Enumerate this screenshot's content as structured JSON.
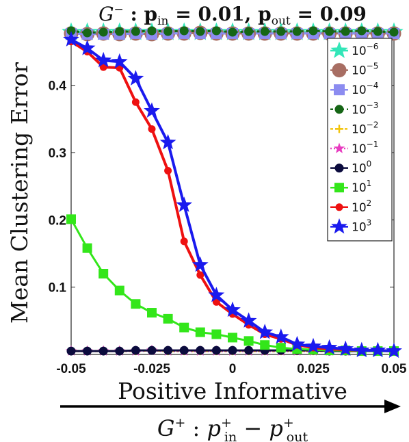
{
  "chart_data": {
    "type": "line",
    "title": "G⁻ : p_in = 0.01,  p_out = 0.09",
    "title_parts": {
      "g": "G",
      "g_sup": "−",
      "sep": " : ",
      "p": "p",
      "in": "in",
      "eq_in": " = 0.01,  ",
      "out": "out",
      "eq_out": " = 0.09"
    },
    "xlabel": "Positive Informative",
    "xlabel2_parts": {
      "g": "G",
      "sup": "+",
      "colon": " : ",
      "p": "p",
      "in": "in",
      "out": "out",
      "minus": " − "
    },
    "ylabel": "Mean Clustering Error",
    "xlim": [
      -0.05,
      0.05
    ],
    "ylim": [
      0.0,
      0.48
    ],
    "x_ticks": [
      -0.05,
      -0.025,
      0,
      0.025,
      0.05
    ],
    "x_tick_labels": [
      "-0.05",
      "-0.025",
      "0",
      "0.025",
      "0.05"
    ],
    "y_ticks": [
      0.1,
      0.2,
      0.3,
      0.4
    ],
    "y_tick_labels": [
      "0.1",
      "0.2",
      "0.3",
      "0.4"
    ],
    "legend_position": "top-right",
    "x": [
      -0.05,
      -0.045,
      -0.04,
      -0.035,
      -0.03,
      -0.025,
      -0.02,
      -0.015,
      -0.01,
      -0.005,
      0,
      0.005,
      0.01,
      0.015,
      0.02,
      0.025,
      0.03,
      0.035,
      0.04,
      0.045,
      0.05
    ],
    "series": [
      {
        "name": "10^-6",
        "base": "10",
        "exp": "-6",
        "color": "#33e6b8",
        "marker": "star",
        "size": 13,
        "dash": "",
        "values": [
          0.479,
          0.479,
          0.479,
          0.479,
          0.479,
          0.479,
          0.479,
          0.479,
          0.479,
          0.479,
          0.479,
          0.479,
          0.479,
          0.479,
          0.479,
          0.479,
          0.479,
          0.479,
          0.479,
          0.479,
          0.479
        ]
      },
      {
        "name": "10^-5",
        "base": "10",
        "exp": "-5",
        "color": "#a86e63",
        "marker": "circle",
        "size": 10,
        "dash": "",
        "values": [
          0.477,
          0.476,
          0.477,
          0.476,
          0.477,
          0.476,
          0.477,
          0.477,
          0.478,
          0.477,
          0.477,
          0.477,
          0.477,
          0.477,
          0.477,
          0.477,
          0.477,
          0.477,
          0.477,
          0.477,
          0.477
        ]
      },
      {
        "name": "10^-4",
        "base": "10",
        "exp": "-4",
        "color": "#8c8cf0",
        "marker": "square",
        "size": 8,
        "dash": "6,4",
        "values": [
          0.477,
          0.476,
          0.476,
          0.476,
          0.477,
          0.476,
          0.477,
          0.477,
          0.477,
          0.477,
          0.477,
          0.477,
          0.477,
          0.477,
          0.477,
          0.477,
          0.477,
          0.477,
          0.477,
          0.477,
          0.477
        ]
      },
      {
        "name": "10^-3",
        "base": "10",
        "exp": "-3",
        "color": "#166616",
        "marker": "circle",
        "size": 6,
        "dash": "4,4",
        "values": [
          0.481,
          0.478,
          0.479,
          0.48,
          0.48,
          0.481,
          0.48,
          0.481,
          0.48,
          0.481,
          0.479,
          0.48,
          0.48,
          0.48,
          0.48,
          0.481,
          0.48,
          0.48,
          0.481,
          0.48,
          0.479
        ]
      },
      {
        "name": "10^-2",
        "base": "10",
        "exp": "-2",
        "color": "#f2c40c",
        "marker": "plus",
        "size": 6,
        "dash": "4,3",
        "values": [
          0.005,
          0.005,
          0.005,
          0.005,
          0.005,
          0.006,
          0.005,
          0.005,
          0.005,
          0.005,
          0.005,
          0.005,
          0.005,
          0.005,
          0.005,
          0.005,
          0.005,
          0.005,
          0.005,
          0.005,
          0.005
        ]
      },
      {
        "name": "10^-1",
        "base": "10",
        "exp": "-1",
        "color": "#e83cc0",
        "marker": "star",
        "size": 7,
        "dash": "2,3",
        "values": [
          0.005,
          0.005,
          0.005,
          0.005,
          0.005,
          0.006,
          0.005,
          0.005,
          0.005,
          0.005,
          0.005,
          0.005,
          0.005,
          0.005,
          0.005,
          0.005,
          0.005,
          0.005,
          0.005,
          0.005,
          0.005
        ]
      },
      {
        "name": "10^0",
        "base": "10",
        "exp": "0",
        "color": "#0b0b3d",
        "marker": "circle",
        "size": 6,
        "dash": "",
        "values": [
          0.005,
          0.005,
          0.005,
          0.005,
          0.006,
          0.006,
          0.006,
          0.006,
          0.006,
          0.006,
          0.006,
          0.006,
          0.006,
          0.006,
          0.006,
          0.006,
          0.005,
          0.005,
          0.005,
          0.005,
          0.005
        ]
      },
      {
        "name": "10^1",
        "base": "10",
        "exp": "1",
        "color": "#33e61a",
        "marker": "square",
        "size": 7,
        "dash": "",
        "values": [
          0.201,
          0.158,
          0.12,
          0.095,
          0.075,
          0.062,
          0.053,
          0.04,
          0.033,
          0.03,
          0.025,
          0.02,
          0.014,
          0.01,
          0.008,
          0.007,
          0.006,
          0.006,
          0.005,
          0.005,
          0.005
        ]
      },
      {
        "name": "10^2",
        "base": "10",
        "exp": "2",
        "color": "#ee1111",
        "marker": "circle",
        "size": 5,
        "dash": "",
        "values": [
          0.465,
          0.45,
          0.427,
          0.426,
          0.375,
          0.335,
          0.273,
          0.168,
          0.118,
          0.078,
          0.06,
          0.044,
          0.03,
          0.023,
          0.014,
          0.01,
          0.008,
          0.007,
          0.006,
          0.006,
          0.005
        ]
      },
      {
        "name": "10^3",
        "base": "10",
        "exp": "3",
        "color": "#1a1aee",
        "marker": "star",
        "size": 11,
        "dash": "",
        "values": [
          0.468,
          0.455,
          0.437,
          0.435,
          0.41,
          0.362,
          0.315,
          0.222,
          0.133,
          0.088,
          0.066,
          0.05,
          0.033,
          0.026,
          0.015,
          0.012,
          0.01,
          0.008,
          0.006,
          0.006,
          0.005
        ]
      }
    ]
  }
}
